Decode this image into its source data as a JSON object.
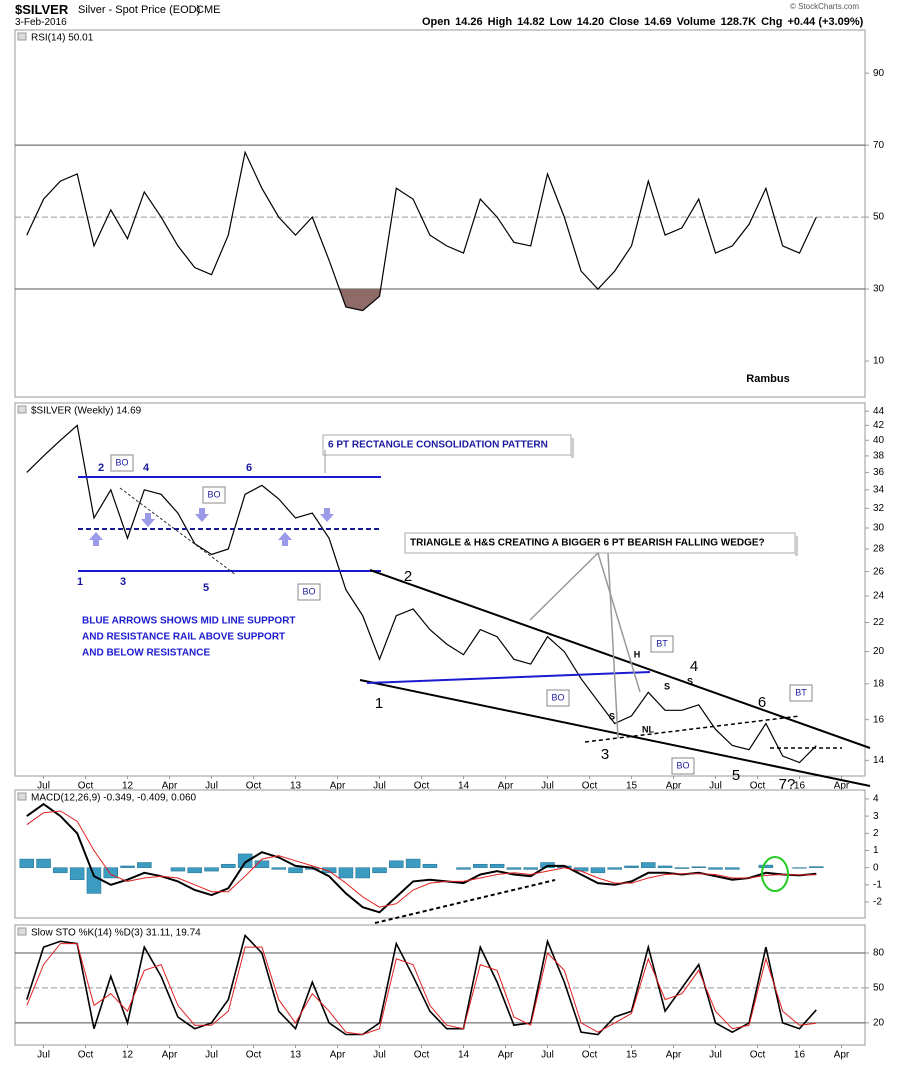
{
  "header": {
    "symbol": "$SILVER",
    "name": "Silver - Spot Price (EOD)",
    "exchange": "CME",
    "date": "3-Feb-2016",
    "copyright": "© StockCharts.com",
    "quote": [
      {
        "label": "Open",
        "value": "14.26"
      },
      {
        "label": "High",
        "value": "14.82"
      },
      {
        "label": "Low",
        "value": "14.20"
      },
      {
        "label": "Close",
        "value": "14.69"
      },
      {
        "label": "Volume",
        "value": "128.7K"
      },
      {
        "label": "Chg",
        "value": "+0.44 (+3.09%)"
      }
    ]
  },
  "chart_data": [
    {
      "type": "line",
      "title": "RSI(14) 50.01",
      "x": [
        2011.4,
        2011.5,
        2011.6,
        2011.7,
        2011.8,
        2011.9,
        2012.0,
        2012.1,
        2012.2,
        2012.3,
        2012.4,
        2012.5,
        2012.6,
        2012.7,
        2012.8,
        2012.9,
        2013.0,
        2013.1,
        2013.2,
        2013.3,
        2013.4,
        2013.5,
        2013.6,
        2013.7,
        2013.8,
        2013.9,
        2014.0,
        2014.1,
        2014.2,
        2014.3,
        2014.4,
        2014.5,
        2014.6,
        2014.7,
        2014.8,
        2014.9,
        2015.0,
        2015.1,
        2015.2,
        2015.3,
        2015.4,
        2015.5,
        2015.6,
        2015.7,
        2015.8,
        2015.9,
        2016.0,
        2016.1
      ],
      "xlim": [
        2011.33,
        2016.39
      ],
      "ylim": [
        0,
        102
      ],
      "yticks": [
        10,
        30,
        50,
        70,
        90
      ],
      "level_lines": [
        {
          "value": 70,
          "dashed": false
        },
        {
          "value": 50,
          "dashed": true
        },
        {
          "value": 30,
          "dashed": false
        }
      ],
      "fill_below": {
        "value": 30,
        "color": "#8e6b66"
      },
      "series": [
        {
          "color": "#000000",
          "values": [
            45,
            55,
            60,
            62,
            42,
            52,
            44,
            57,
            50,
            42,
            36,
            34,
            45,
            68,
            58,
            50,
            45,
            50,
            38,
            25,
            24,
            28,
            58,
            55,
            45,
            42,
            40,
            55,
            50,
            43,
            42,
            62,
            50,
            35,
            30,
            35,
            42,
            60,
            45,
            47,
            55,
            40,
            42,
            48,
            58,
            42,
            40,
            50
          ]
        }
      ]
    },
    {
      "type": "line",
      "title": "$SILVER (Weekly) 14.69",
      "log": true,
      "x": [
        2011.4,
        2011.5,
        2011.6,
        2011.7,
        2011.8,
        2011.9,
        2012.0,
        2012.1,
        2012.2,
        2012.3,
        2012.4,
        2012.5,
        2012.6,
        2012.7,
        2012.8,
        2012.9,
        2013.0,
        2013.1,
        2013.2,
        2013.3,
        2013.4,
        2013.5,
        2013.6,
        2013.7,
        2013.8,
        2013.9,
        2014.0,
        2014.1,
        2014.2,
        2014.3,
        2014.4,
        2014.5,
        2014.6,
        2014.7,
        2014.8,
        2014.9,
        2015.0,
        2015.1,
        2015.2,
        2015.3,
        2015.4,
        2015.5,
        2015.6,
        2015.7,
        2015.8,
        2015.9,
        2016.0,
        2016.1
      ],
      "xlim": [
        2011.33,
        2016.39
      ],
      "ylim": [
        13.3,
        45.2
      ],
      "yticks": [
        14,
        16,
        18,
        20,
        22,
        24,
        26,
        28,
        30,
        32,
        34,
        36,
        38,
        40,
        42,
        44
      ],
      "xticks": [
        {
          "value": 2011.5,
          "label": "Jul"
        },
        {
          "value": 2011.75,
          "label": "Oct"
        },
        {
          "value": 2012,
          "label": "12"
        },
        {
          "value": 2012.25,
          "label": "Apr"
        },
        {
          "value": 2012.5,
          "label": "Jul"
        },
        {
          "value": 2012.75,
          "label": "Oct"
        },
        {
          "value": 2013,
          "label": "13"
        },
        {
          "value": 2013.25,
          "label": "Apr"
        },
        {
          "value": 2013.5,
          "label": "Jul"
        },
        {
          "value": 2013.75,
          "label": "Oct"
        },
        {
          "value": 2014,
          "label": "14"
        },
        {
          "value": 2014.25,
          "label": "Apr"
        },
        {
          "value": 2014.5,
          "label": "Jul"
        },
        {
          "value": 2014.75,
          "label": "Oct"
        },
        {
          "value": 2015,
          "label": "15"
        },
        {
          "value": 2015.25,
          "label": "Apr"
        },
        {
          "value": 2015.5,
          "label": "Jul"
        },
        {
          "value": 2015.75,
          "label": "Oct"
        },
        {
          "value": 2016,
          "label": "16"
        },
        {
          "value": 2016.25,
          "label": "Apr"
        }
      ],
      "series": [
        {
          "color": "#000000",
          "values": [
            36,
            38,
            40,
            42,
            31,
            34,
            29,
            34,
            33.5,
            31.5,
            28.5,
            27.5,
            28,
            33.5,
            34.5,
            33,
            31,
            31.5,
            29,
            24.5,
            22.5,
            19.5,
            22.5,
            23,
            21.5,
            20.5,
            19.8,
            21.5,
            21,
            19.5,
            19.2,
            21,
            20,
            18.3,
            17,
            15.8,
            16.2,
            17.5,
            16.5,
            16.5,
            16.8,
            15.5,
            14.7,
            14.5,
            15.8,
            14.2,
            13.9,
            14.69
          ]
        }
      ],
      "annotations": [
        "6 PT RECTANGLE CONSOLIDATION PATTERN",
        "TRIANGLE & H&S CREATING A BIGGER 6 PT BEARISH FALLING WEDGE?",
        "BLUE ARROWS SHOWS MID LINE SUPPORT",
        "AND RESISTANCE RAIL ABOVE SUPPORT",
        "AND BELOW RESISTANCE",
        "BO",
        "BO",
        "BO",
        "BO",
        "BO",
        "BT",
        "BT",
        "1",
        "2",
        "3",
        "4",
        "5",
        "6",
        "1",
        "2",
        "3",
        "4",
        "5",
        "6",
        "7?",
        "H",
        "S",
        "S",
        "S",
        "NL",
        "Rambus"
      ]
    },
    {
      "type": "line",
      "title": "MACD(12,26,9) -0.349, -0.409, 0.060",
      "x": [
        2011.4,
        2011.5,
        2011.6,
        2011.7,
        2011.8,
        2011.9,
        2012.0,
        2012.1,
        2012.2,
        2012.3,
        2012.4,
        2012.5,
        2012.6,
        2012.7,
        2012.8,
        2012.9,
        2013.0,
        2013.1,
        2013.2,
        2013.3,
        2013.4,
        2013.5,
        2013.6,
        2013.7,
        2013.8,
        2013.9,
        2014.0,
        2014.1,
        2014.2,
        2014.3,
        2014.4,
        2014.5,
        2014.6,
        2014.7,
        2014.8,
        2014.9,
        2015.0,
        2015.1,
        2015.2,
        2015.3,
        2015.4,
        2015.5,
        2015.6,
        2015.7,
        2015.8,
        2015.9,
        2016.0,
        2016.1
      ],
      "xlim": [
        2011.33,
        2016.39
      ],
      "ylim": [
        -2.93,
        4.52
      ],
      "yticks": [
        -2,
        -1,
        0,
        1,
        2,
        3,
        4
      ],
      "series": [
        {
          "type": "bar",
          "color": "#3b9bc1",
          "values": [
            0.5,
            0.5,
            -0.3,
            -0.7,
            -1.5,
            -0.6,
            0.1,
            0.3,
            0,
            -0.2,
            -0.3,
            -0.2,
            0.2,
            0.8,
            0.4,
            -0.1,
            -0.3,
            -0.1,
            -0.3,
            -0.6,
            -0.6,
            -0.3,
            0.4,
            0.5,
            0.2,
            0,
            -0.1,
            0.2,
            0.2,
            -0.1,
            -0.1,
            0.3,
            0.1,
            -0.2,
            -0.3,
            -0.1,
            0.1,
            0.3,
            0.1,
            -0.05,
            0.05,
            -0.1,
            -0.1,
            0,
            0.15,
            0,
            -0.03,
            0.06
          ]
        },
        {
          "color": "#000000",
          "width": 2,
          "values": [
            3.0,
            3.7,
            3.0,
            2.0,
            -0.5,
            -1.0,
            -0.7,
            -0.3,
            -0.5,
            -0.8,
            -1.3,
            -1.6,
            -1.2,
            0.3,
            0.9,
            0.6,
            0.1,
            0.0,
            -0.5,
            -1.5,
            -2.3,
            -2.6,
            -1.7,
            -0.8,
            -0.7,
            -0.8,
            -0.9,
            -0.4,
            -0.2,
            -0.4,
            -0.5,
            0.1,
            0.1,
            -0.4,
            -0.9,
            -1.0,
            -0.8,
            -0.3,
            -0.3,
            -0.4,
            -0.3,
            -0.5,
            -0.7,
            -0.6,
            -0.3,
            -0.4,
            -0.45,
            -0.349
          ]
        },
        {
          "color": "#e02020",
          "width": 1,
          "values": [
            2.5,
            3.2,
            3.3,
            2.7,
            1.0,
            -0.4,
            -0.8,
            -0.6,
            -0.5,
            -0.6,
            -1.0,
            -1.4,
            -1.4,
            -0.5,
            0.5,
            0.7,
            0.4,
            0.1,
            -0.2,
            -0.9,
            -1.7,
            -2.3,
            -2.1,
            -1.3,
            -0.9,
            -0.8,
            -0.8,
            -0.6,
            -0.4,
            -0.3,
            -0.4,
            -0.2,
            0.0,
            -0.2,
            -0.6,
            -0.9,
            -0.9,
            -0.6,
            -0.4,
            -0.35,
            -0.35,
            -0.4,
            -0.6,
            -0.6,
            -0.45,
            -0.4,
            -0.42,
            -0.409
          ]
        }
      ]
    },
    {
      "type": "line",
      "title": "Slow STO %K(14) %D(3) 31.11, 19.74",
      "x": [
        2011.4,
        2011.5,
        2011.6,
        2011.7,
        2011.8,
        2011.9,
        2012.0,
        2012.1,
        2012.2,
        2012.3,
        2012.4,
        2012.5,
        2012.6,
        2012.7,
        2012.8,
        2012.9,
        2013.0,
        2013.1,
        2013.2,
        2013.3,
        2013.4,
        2013.5,
        2013.6,
        2013.7,
        2013.8,
        2013.9,
        2014.0,
        2014.1,
        2014.2,
        2014.3,
        2014.4,
        2014.5,
        2014.6,
        2014.7,
        2014.8,
        2014.9,
        2015.0,
        2015.1,
        2015.2,
        2015.3,
        2015.4,
        2015.5,
        2015.6,
        2015.7,
        2015.8,
        2015.9,
        2016.0,
        2016.1
      ],
      "xlim": [
        2011.33,
        2016.39
      ],
      "ylim": [
        1,
        104
      ],
      "yticks": [
        20,
        50,
        80
      ],
      "xticks": [
        {
          "value": 2011.5,
          "label": "Jul"
        },
        {
          "value": 2011.75,
          "label": "Oct"
        },
        {
          "value": 2012,
          "label": "12"
        },
        {
          "value": 2012.25,
          "label": "Apr"
        },
        {
          "value": 2012.5,
          "label": "Jul"
        },
        {
          "value": 2012.75,
          "label": "Oct"
        },
        {
          "value": 2013,
          "label": "13"
        },
        {
          "value": 2013.25,
          "label": "Apr"
        },
        {
          "value": 2013.5,
          "label": "Jul"
        },
        {
          "value": 2013.75,
          "label": "Oct"
        },
        {
          "value": 2014,
          "label": "14"
        },
        {
          "value": 2014.25,
          "label": "Apr"
        },
        {
          "value": 2014.5,
          "label": "Jul"
        },
        {
          "value": 2014.75,
          "label": "Oct"
        },
        {
          "value": 2015,
          "label": "15"
        },
        {
          "value": 2015.25,
          "label": "Apr"
        },
        {
          "value": 2015.5,
          "label": "Jul"
        },
        {
          "value": 2015.75,
          "label": "Oct"
        },
        {
          "value": 2016,
          "label": "16"
        },
        {
          "value": 2016.25,
          "label": "Apr"
        }
      ],
      "level_lines": [
        {
          "value": 80,
          "dashed": false
        },
        {
          "value": 50,
          "dashed": true
        },
        {
          "value": 20,
          "dashed": false
        }
      ],
      "series": [
        {
          "color": "#000000",
          "width": 1.6,
          "values": [
            40,
            85,
            90,
            88,
            15,
            60,
            20,
            85,
            60,
            25,
            15,
            20,
            40,
            95,
            80,
            30,
            15,
            55,
            20,
            10,
            10,
            20,
            88,
            60,
            30,
            15,
            15,
            85,
            55,
            18,
            20,
            90,
            55,
            12,
            10,
            25,
            30,
            85,
            30,
            50,
            70,
            20,
            12,
            20,
            85,
            20,
            15,
            31.11
          ]
        },
        {
          "color": "#e02020",
          "width": 1,
          "values": [
            35,
            70,
            88,
            88,
            35,
            45,
            30,
            65,
            70,
            35,
            18,
            18,
            30,
            85,
            85,
            40,
            20,
            45,
            30,
            12,
            10,
            15,
            75,
            70,
            35,
            18,
            15,
            70,
            65,
            25,
            18,
            80,
            65,
            20,
            12,
            20,
            28,
            75,
            40,
            45,
            65,
            30,
            15,
            18,
            75,
            30,
            18,
            19.74
          ]
        }
      ]
    }
  ]
}
